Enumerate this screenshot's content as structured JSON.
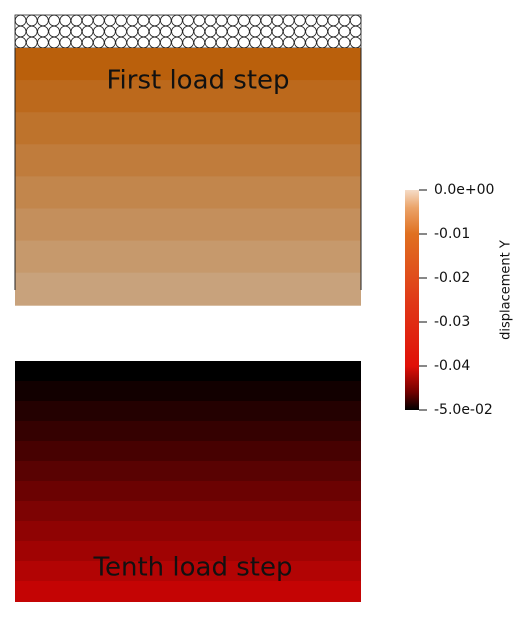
{
  "panels": [
    {
      "label": "First load step"
    },
    {
      "label": "Tenth load step"
    }
  ],
  "colorbar": {
    "title": "displacement Y",
    "range": [
      -0.05,
      0
    ],
    "ticks": [
      {
        "value": 0,
        "label": "0.0e+00"
      },
      -0.01,
      -0.02,
      -0.03,
      -0.04,
      {
        "value": -0.05,
        "label": "-5.0e-02"
      }
    ]
  }
}
